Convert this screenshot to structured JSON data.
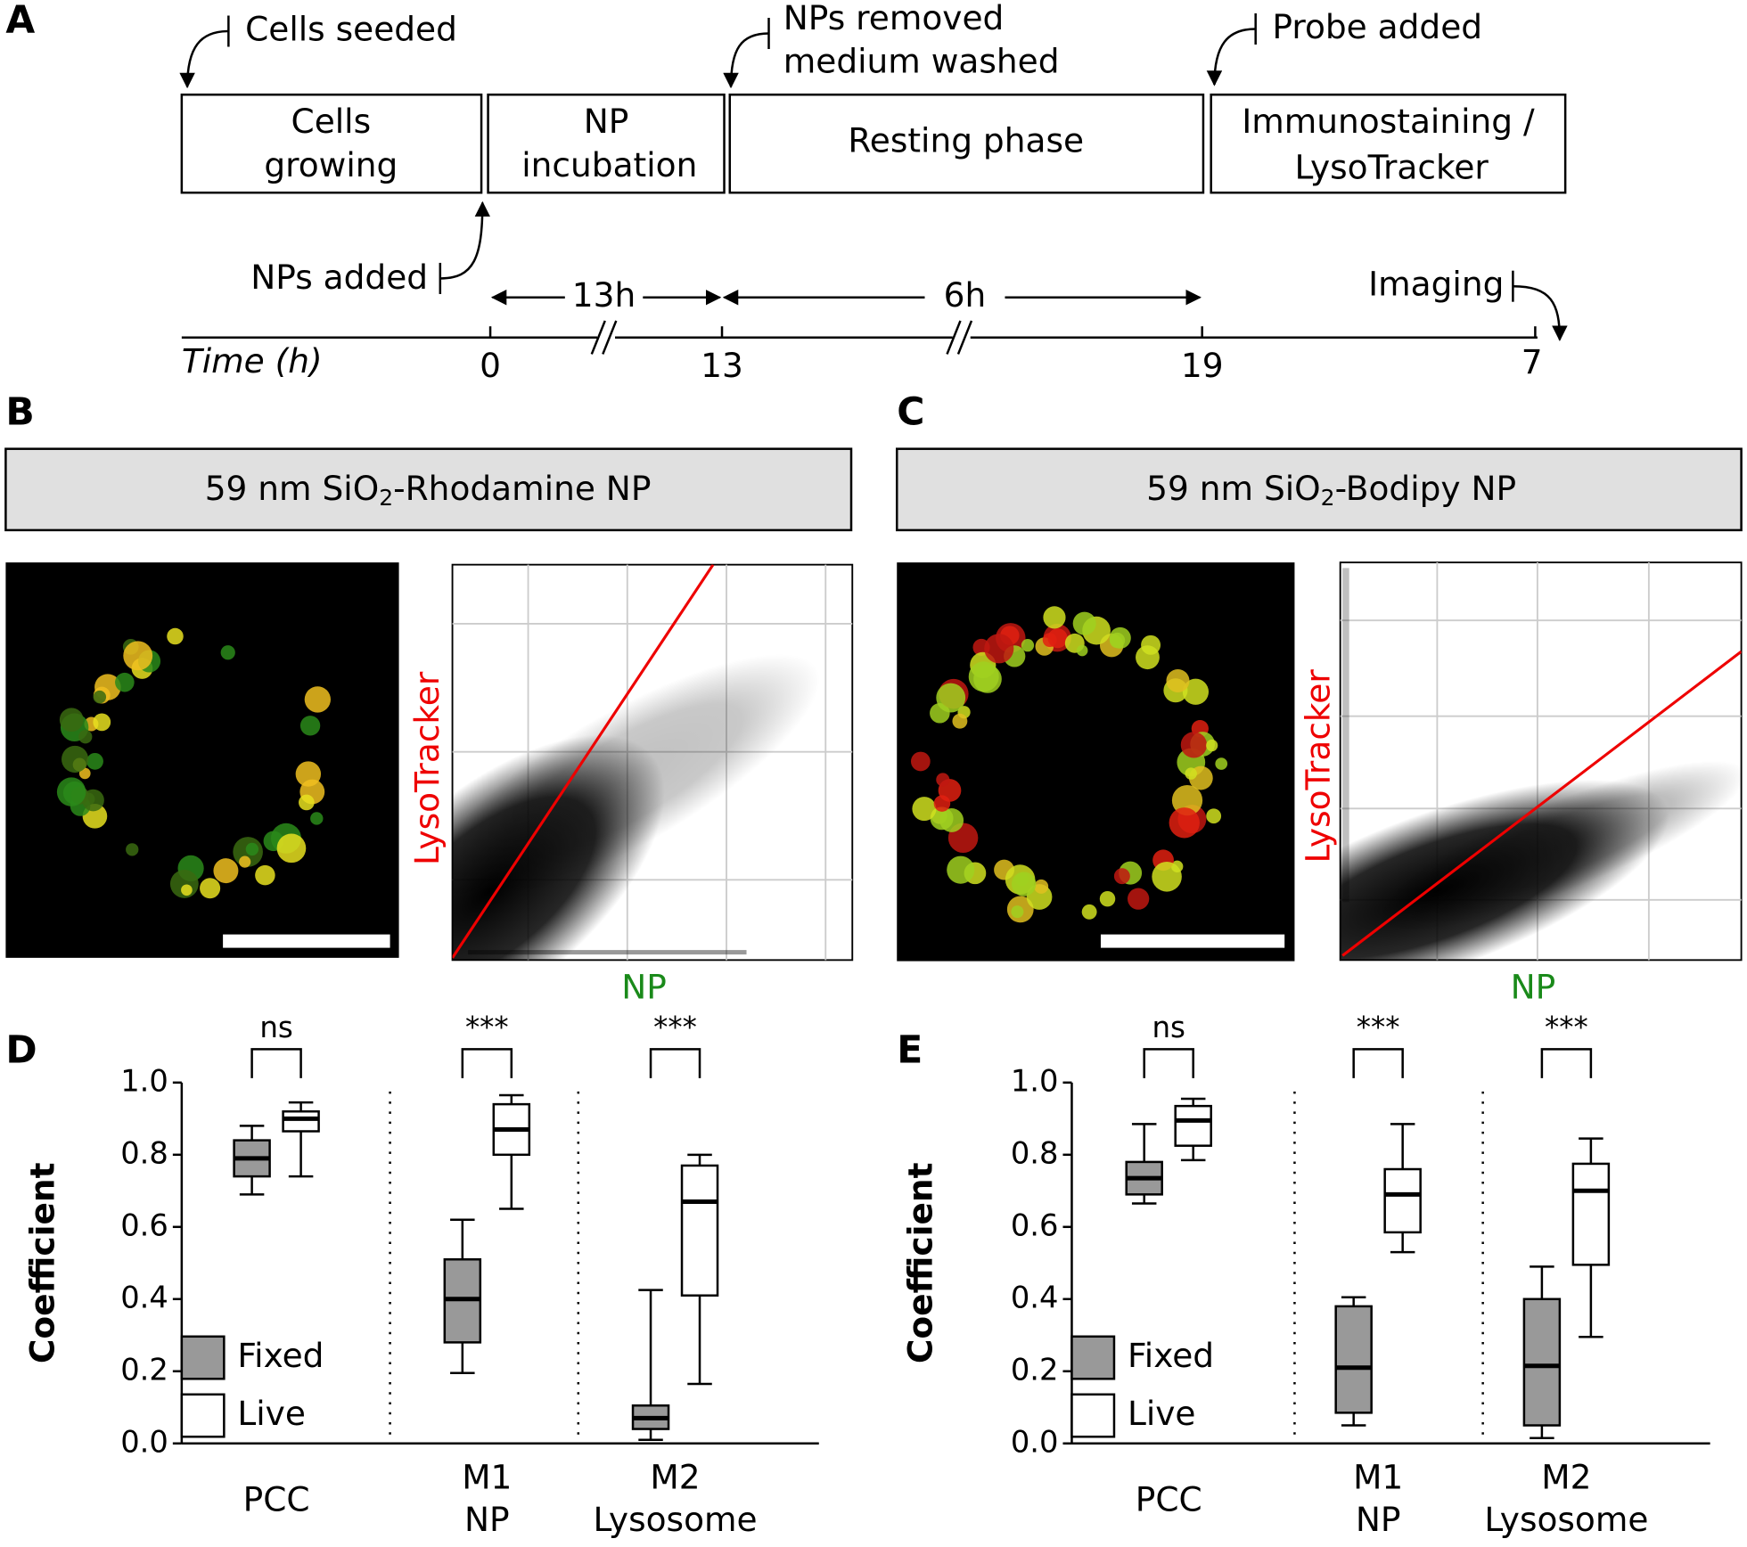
{
  "panel_a": {
    "letter": "A",
    "cells_seeded": "Cells seeded",
    "nps_removed": [
      "NPs removed",
      "medium washed"
    ],
    "probe_added": "Probe added",
    "phases": [
      [
        "Cells",
        "growing"
      ],
      [
        "NP",
        "incubation"
      ],
      [
        "Resting phase"
      ],
      [
        "Immunostaining /",
        "LysoTracker"
      ]
    ],
    "nps_added": "NPs added",
    "imaging": "Imaging",
    "durations": [
      "13h",
      "6h"
    ],
    "time_label": "Time (h)",
    "time_ticks": [
      0,
      13,
      19,
      7
    ]
  },
  "panel_b": {
    "letter": "B",
    "title": {
      "pre": "59 nm SiO",
      "sub": "2",
      "post": "-Rhodamine NP"
    },
    "y_label": "LysoTracker",
    "x_label": "NP"
  },
  "panel_c": {
    "letter": "C",
    "title": {
      "pre": "59 nm SiO",
      "sub": "2",
      "post": "-Bodipy NP"
    },
    "y_label": "LysoTracker",
    "x_label": "NP"
  },
  "chart_data": [
    {
      "type": "box",
      "letter": "D",
      "ylabel": "Coefficient",
      "ylim": [
        0,
        1
      ],
      "yticks": [
        {
          "value": 0,
          "label": "0.0"
        },
        0.2,
        0.4,
        0.6,
        0.8,
        {
          "value": 1,
          "label": "1.0"
        }
      ],
      "categories": [
        [
          "PCC"
        ],
        [
          "M1",
          "NP"
        ],
        [
          "M2",
          "Lysosome"
        ]
      ],
      "significance": [
        "ns",
        "***",
        "***"
      ],
      "series": [
        {
          "name": "Fixed",
          "color": "#999999",
          "values": [
            {
              "low": 0.69,
              "q1": 0.74,
              "median": 0.79,
              "q3": 0.84,
              "high": 0.88
            },
            {
              "low": 0.195,
              "q1": 0.28,
              "median": 0.4,
              "q3": 0.51,
              "high": 0.62
            },
            {
              "low": 0.01,
              "q1": 0.04,
              "median": 0.07,
              "q3": 0.105,
              "high": 0.425
            }
          ]
        },
        {
          "name": "Live",
          "color": "#ffffff",
          "values": [
            {
              "low": 0.74,
              "q1": 0.865,
              "median": 0.9,
              "q3": 0.92,
              "high": 0.945
            },
            {
              "low": 0.65,
              "q1": 0.8,
              "median": 0.87,
              "q3": 0.94,
              "high": 0.965
            },
            {
              "low": 0.165,
              "q1": 0.41,
              "median": 0.67,
              "q3": 0.77,
              "high": 0.8
            }
          ]
        }
      ]
    },
    {
      "type": "box",
      "letter": "E",
      "ylabel": "Coefficient",
      "ylim": [
        0,
        1
      ],
      "yticks": [
        {
          "value": 0,
          "label": "0.0"
        },
        0.2,
        0.4,
        0.6,
        0.8,
        {
          "value": 1,
          "label": "1.0"
        }
      ],
      "categories": [
        [
          "PCC"
        ],
        [
          "M1",
          "NP"
        ],
        [
          "M2",
          "Lysosome"
        ]
      ],
      "significance": [
        "ns",
        "***",
        "***"
      ],
      "series": [
        {
          "name": "Fixed",
          "color": "#999999",
          "values": [
            {
              "low": 0.665,
              "q1": 0.69,
              "median": 0.735,
              "q3": 0.78,
              "high": 0.885
            },
            {
              "low": 0.05,
              "q1": 0.085,
              "median": 0.21,
              "q3": 0.38,
              "high": 0.405
            },
            {
              "low": 0.015,
              "q1": 0.05,
              "median": 0.215,
              "q3": 0.4,
              "high": 0.49
            }
          ]
        },
        {
          "name": "Live",
          "color": "#ffffff",
          "values": [
            {
              "low": 0.785,
              "q1": 0.825,
              "median": 0.895,
              "q3": 0.935,
              "high": 0.955
            },
            {
              "low": 0.53,
              "q1": 0.585,
              "median": 0.69,
              "q3": 0.76,
              "high": 0.885
            },
            {
              "low": 0.295,
              "q1": 0.495,
              "median": 0.7,
              "q3": 0.775,
              "high": 0.845
            }
          ]
        }
      ]
    }
  ]
}
